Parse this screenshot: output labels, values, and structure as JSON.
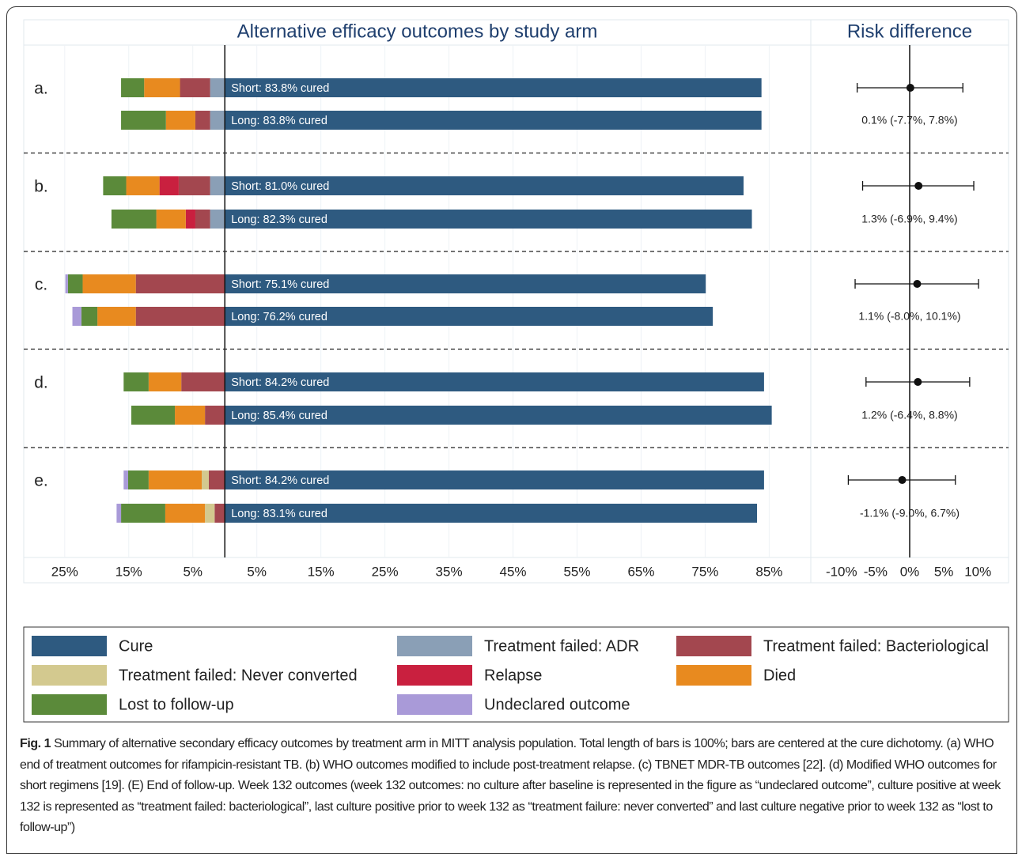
{
  "chart_data": [
    {
      "type": "bar",
      "title": "Alternative efficacy outcomes by study arm",
      "categories": [
        "a.",
        null,
        "b.",
        null,
        "c.",
        null,
        "d.",
        null,
        "e.",
        null
      ],
      "xlim": [
        -31.4,
        91.5
      ],
      "xticks": [
        {
          "value": -25,
          "label": "25%"
        },
        {
          "value": -15,
          "label": "15%"
        },
        {
          "value": -5,
          "label": "5%"
        },
        {
          "value": 5,
          "label": "5%"
        },
        {
          "value": 15,
          "label": "15%"
        },
        {
          "value": 25,
          "label": "25%"
        },
        {
          "value": 35,
          "label": "35%"
        },
        {
          "value": 45,
          "label": "45%"
        },
        {
          "value": 55,
          "label": "55%"
        },
        {
          "value": 65,
          "label": "65%"
        },
        {
          "value": 75,
          "label": "75%"
        },
        {
          "value": 85,
          "label": "85%"
        }
      ],
      "grid": true,
      "series": [
        {
          "name": "Cure",
          "color": "#2e5a80",
          "values": [
            83.8,
            83.8,
            81.0,
            82.3,
            75.1,
            76.2,
            84.2,
            85.4,
            84.2,
            83.1
          ],
          "value_labels": [
            "Short: 83.8% cured",
            "Long: 83.8% cured",
            "Short: 81.0% cured",
            "Long: 82.3% cured",
            "Short: 75.1% cured",
            "Long: 76.2% cured",
            "Short: 84.2% cured",
            "Long: 85.4% cured",
            "Short: 84.2% cured",
            "Long: 83.1% cured"
          ]
        },
        {
          "name": "Treatment failed: ADR",
          "color": "#8a9fb6",
          "values": [
            2.3,
            2.3,
            2.3,
            2.3,
            null,
            null,
            null,
            null,
            null,
            null
          ]
        },
        {
          "name": "Treatment failed: Bacteriological",
          "color": "#a3474f",
          "values": [
            4.7,
            2.3,
            4.9,
            2.3,
            13.9,
            13.9,
            6.8,
            3.1,
            2.5,
            1.6
          ]
        },
        {
          "name": "Treatment failed: Never converted",
          "color": "#d3c98f",
          "values": [
            null,
            null,
            null,
            null,
            null,
            null,
            null,
            null,
            1.1,
            1.5
          ]
        },
        {
          "name": "Relapse",
          "color": "#c9203f",
          "values": [
            null,
            null,
            3.0,
            1.5,
            null,
            null,
            null,
            null,
            null,
            null
          ]
        },
        {
          "name": "Died",
          "color": "#e88a1f",
          "values": [
            5.6,
            4.6,
            5.2,
            4.6,
            8.3,
            6.0,
            5.1,
            4.7,
            8.3,
            6.2
          ]
        },
        {
          "name": "Lost to follow-up",
          "color": "#5b8a3a",
          "values": [
            3.6,
            7.0,
            3.6,
            7.0,
            2.3,
            2.5,
            3.9,
            6.8,
            3.2,
            6.9
          ]
        },
        {
          "name": "Undeclared outcome",
          "color": "#a99ad8",
          "values": [
            null,
            null,
            null,
            null,
            0.4,
            1.4,
            null,
            null,
            0.7,
            0.7
          ]
        }
      ]
    },
    {
      "type": "forest",
      "title": "Risk difference",
      "xlim": [
        -14.5,
        14.5
      ],
      "xticks": [
        {
          "value": -10,
          "label": "-10%"
        },
        {
          "value": -5,
          "label": "-5%"
        },
        {
          "value": 0,
          "label": "0%"
        },
        {
          "value": 5,
          "label": "5%"
        },
        {
          "value": 10,
          "label": "10%"
        }
      ],
      "values": [
        0.1,
        1.3,
        1.1,
        1.2,
        -1.1
      ],
      "lower": [
        -7.7,
        -6.9,
        -8.0,
        -6.4,
        -9.0
      ],
      "upper": [
        7.8,
        9.4,
        10.1,
        8.8,
        6.7
      ],
      "value_labels": [
        "0.1% (-7.7%, 7.8%)",
        "1.3% (-6.9%, 9.4%)",
        "1.1% (-8.0%, 10.1%)",
        "1.2% (-6.4%, 8.8%)",
        "-1.1% (-9.0%, 6.7%)"
      ]
    }
  ],
  "caption": {
    "label": "Fig. 1",
    "text": "Summary of alternative secondary efficacy outcomes by treatment arm in MITT analysis population. Total length of bars is 100%; bars are centered at the cure dichotomy. (a) WHO end of treatment outcomes for rifampicin-resistant TB. (b) WHO outcomes modified to include post-treatment relapse. (c) TBNET MDR-TB outcomes [22]. (d) Modified WHO outcomes for short regimens [19]. (E) End of follow-up. Week 132 outcomes (week 132 outcomes: no culture after baseline is represented in the figure as “undeclared outcome”, culture positive at week 132 is represented as “treatment failed: bacteriological”, last culture positive prior to week 132 as “treatment failure: never converted” and last culture negative prior to week 132 as “lost to follow-up”)"
  }
}
